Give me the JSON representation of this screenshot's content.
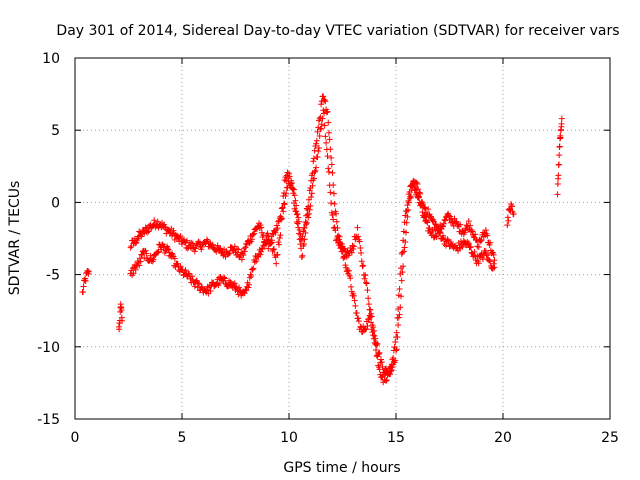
{
  "chart_data": {
    "type": "scatter",
    "title": "Day 301 of 2014, Sidereal Day-to-day VTEC variation (SDTVAR) for receiver vars",
    "xlabel": "GPS time / hours",
    "ylabel": "SDTVAR / TECUs",
    "xlim": [
      0,
      25
    ],
    "ylim": [
      -15,
      10
    ],
    "xticks": [
      0,
      5,
      10,
      15,
      20,
      25
    ],
    "yticks": [
      -15,
      -10,
      -5,
      0,
      5,
      10
    ],
    "grid": true,
    "marker": "+",
    "marker_color": "#ff0000",
    "series": [
      {
        "name": "receiver vars",
        "segments": [
          {
            "x": [
              0.35,
              0.45,
              0.55,
              0.65
            ],
            "y": [
              -6.3,
              -5.5,
              -5.0,
              -4.8
            ]
          },
          {
            "x": [
              2.05,
              2.1,
              2.15,
              2.2
            ],
            "y": [
              -8.8,
              -8.0,
              -7.0,
              -8.2
            ]
          },
          {
            "x": [
              2.6,
              2.8,
              3.0,
              3.2,
              3.4,
              3.6,
              3.8,
              4.0,
              4.2,
              4.4,
              4.6,
              4.8,
              5.0,
              5.2,
              5.4,
              5.6,
              5.8,
              6.0,
              6.2,
              6.4,
              6.6,
              6.8,
              7.0,
              7.2,
              7.4,
              7.6,
              7.8,
              8.0,
              8.2,
              8.4,
              8.6,
              8.8,
              9.0,
              9.2,
              9.4,
              9.6,
              9.8,
              10.0,
              10.2,
              10.4,
              10.6,
              10.8,
              11.0,
              11.2,
              11.4,
              11.6,
              11.8,
              12.0,
              12.2,
              12.4,
              12.6,
              12.8,
              13.0,
              13.2,
              13.4,
              13.6,
              13.8,
              14.0,
              14.2,
              14.4,
              14.6,
              14.8,
              15.0,
              15.2,
              15.4,
              15.6,
              15.8,
              16.0,
              16.2,
              16.4,
              16.6,
              16.8,
              17.0,
              17.2,
              17.4,
              17.6,
              17.8,
              18.0,
              18.2,
              18.4,
              18.6,
              18.8,
              19.0,
              19.2,
              19.4,
              19.6
            ],
            "y": [
              -3.0,
              -2.7,
              -2.3,
              -2.1,
              -1.8,
              -1.6,
              -1.4,
              -1.5,
              -1.8,
              -2.0,
              -2.2,
              -2.5,
              -2.7,
              -2.9,
              -3.0,
              -3.1,
              -3.0,
              -2.9,
              -2.8,
              -3.0,
              -3.2,
              -3.4,
              -3.5,
              -3.3,
              -3.2,
              -3.5,
              -3.8,
              -3.0,
              -2.5,
              -2.0,
              -1.5,
              -2.5,
              -3.0,
              -2.5,
              -2.0,
              -1.0,
              0.0,
              1.5,
              1.0,
              -1.0,
              -2.5,
              -1.0,
              1.0,
              3.5,
              5.5,
              7.5,
              6.0,
              2.5,
              -1.0,
              -3.0,
              -3.5,
              -3.6,
              -3.0,
              -2.0,
              -4.0,
              -5.5,
              -7.5,
              -9.0,
              -10.5,
              -11.5,
              -11.8,
              -11.5,
              -10.5,
              -7.0,
              -3.0,
              0.0,
              1.2,
              0.5,
              -0.5,
              -1.5,
              -2.0,
              -2.2,
              -2.0,
              -1.5,
              -1.0,
              -1.2,
              -1.5,
              -1.8,
              -2.0,
              -1.5,
              -2.0,
              -3.0,
              -2.5,
              -2.0,
              -3.0,
              -4.0
            ]
          },
          {
            "x": [
              2.6,
              2.8,
              3.0,
              3.2,
              3.4,
              3.6,
              3.8,
              4.0,
              4.2,
              4.4,
              4.6,
              4.8,
              5.0,
              5.2,
              5.4,
              5.6,
              5.8,
              6.0,
              6.2,
              6.4,
              6.6,
              6.8,
              7.0,
              7.2,
              7.4,
              7.6,
              7.8,
              8.0,
              8.2,
              8.4,
              8.6,
              8.8,
              9.0,
              9.2,
              9.4,
              9.6,
              9.8,
              10.0,
              10.2,
              10.4,
              10.6,
              10.8,
              11.0,
              11.2,
              11.4,
              11.6,
              11.8,
              12.0,
              12.2,
              12.4,
              12.6,
              12.8,
              13.0,
              13.2,
              13.4,
              13.6,
              13.8,
              14.0,
              14.2,
              14.4,
              14.6,
              14.8,
              15.0,
              15.2,
              15.4,
              15.6,
              15.8,
              16.0,
              16.2,
              16.4,
              16.6,
              16.8,
              17.0,
              17.2,
              17.4,
              17.6,
              17.8,
              18.0,
              18.2,
              18.4,
              18.6,
              18.8,
              19.0,
              19.2,
              19.4,
              19.6
            ],
            "y": [
              -5.0,
              -4.5,
              -4.2,
              -3.5,
              -3.8,
              -4.0,
              -3.5,
              -3.0,
              -3.2,
              -3.5,
              -4.0,
              -4.5,
              -4.8,
              -5.0,
              -5.3,
              -5.6,
              -5.8,
              -6.0,
              -6.1,
              -5.8,
              -5.6,
              -5.4,
              -5.5,
              -5.6,
              -5.8,
              -6.0,
              -6.5,
              -6.2,
              -5.0,
              -4.0,
              -3.5,
              -3.0,
              -2.2,
              -3.0,
              -4.0,
              -2.0,
              1.5,
              2.0,
              0.5,
              -1.5,
              -3.8,
              -1.5,
              0.0,
              2.0,
              4.0,
              6.5,
              3.0,
              -0.5,
              -2.5,
              -3.0,
              -4.0,
              -5.0,
              -6.5,
              -8.0,
              -9.0,
              -8.5,
              -8.0,
              -9.5,
              -11.5,
              -12.2,
              -12.0,
              -11.5,
              -9.5,
              -5.0,
              -1.5,
              0.5,
              1.5,
              1.0,
              0.0,
              -0.5,
              -1.0,
              -1.5,
              -2.0,
              -2.5,
              -2.8,
              -3.0,
              -3.2,
              -3.0,
              -2.8,
              -3.0,
              -3.5,
              -4.0,
              -3.8,
              -3.5,
              -4.2,
              -4.5
            ]
          },
          {
            "x": [
              20.2,
              20.3,
              20.4,
              20.5
            ],
            "y": [
              -1.5,
              -0.5,
              0.0,
              -0.8
            ]
          },
          {
            "x": [
              22.55,
              22.6,
              22.65,
              22.7,
              22.75
            ],
            "y": [
              0.5,
              2.5,
              4.0,
              5.0,
              5.8
            ]
          }
        ]
      }
    ]
  }
}
